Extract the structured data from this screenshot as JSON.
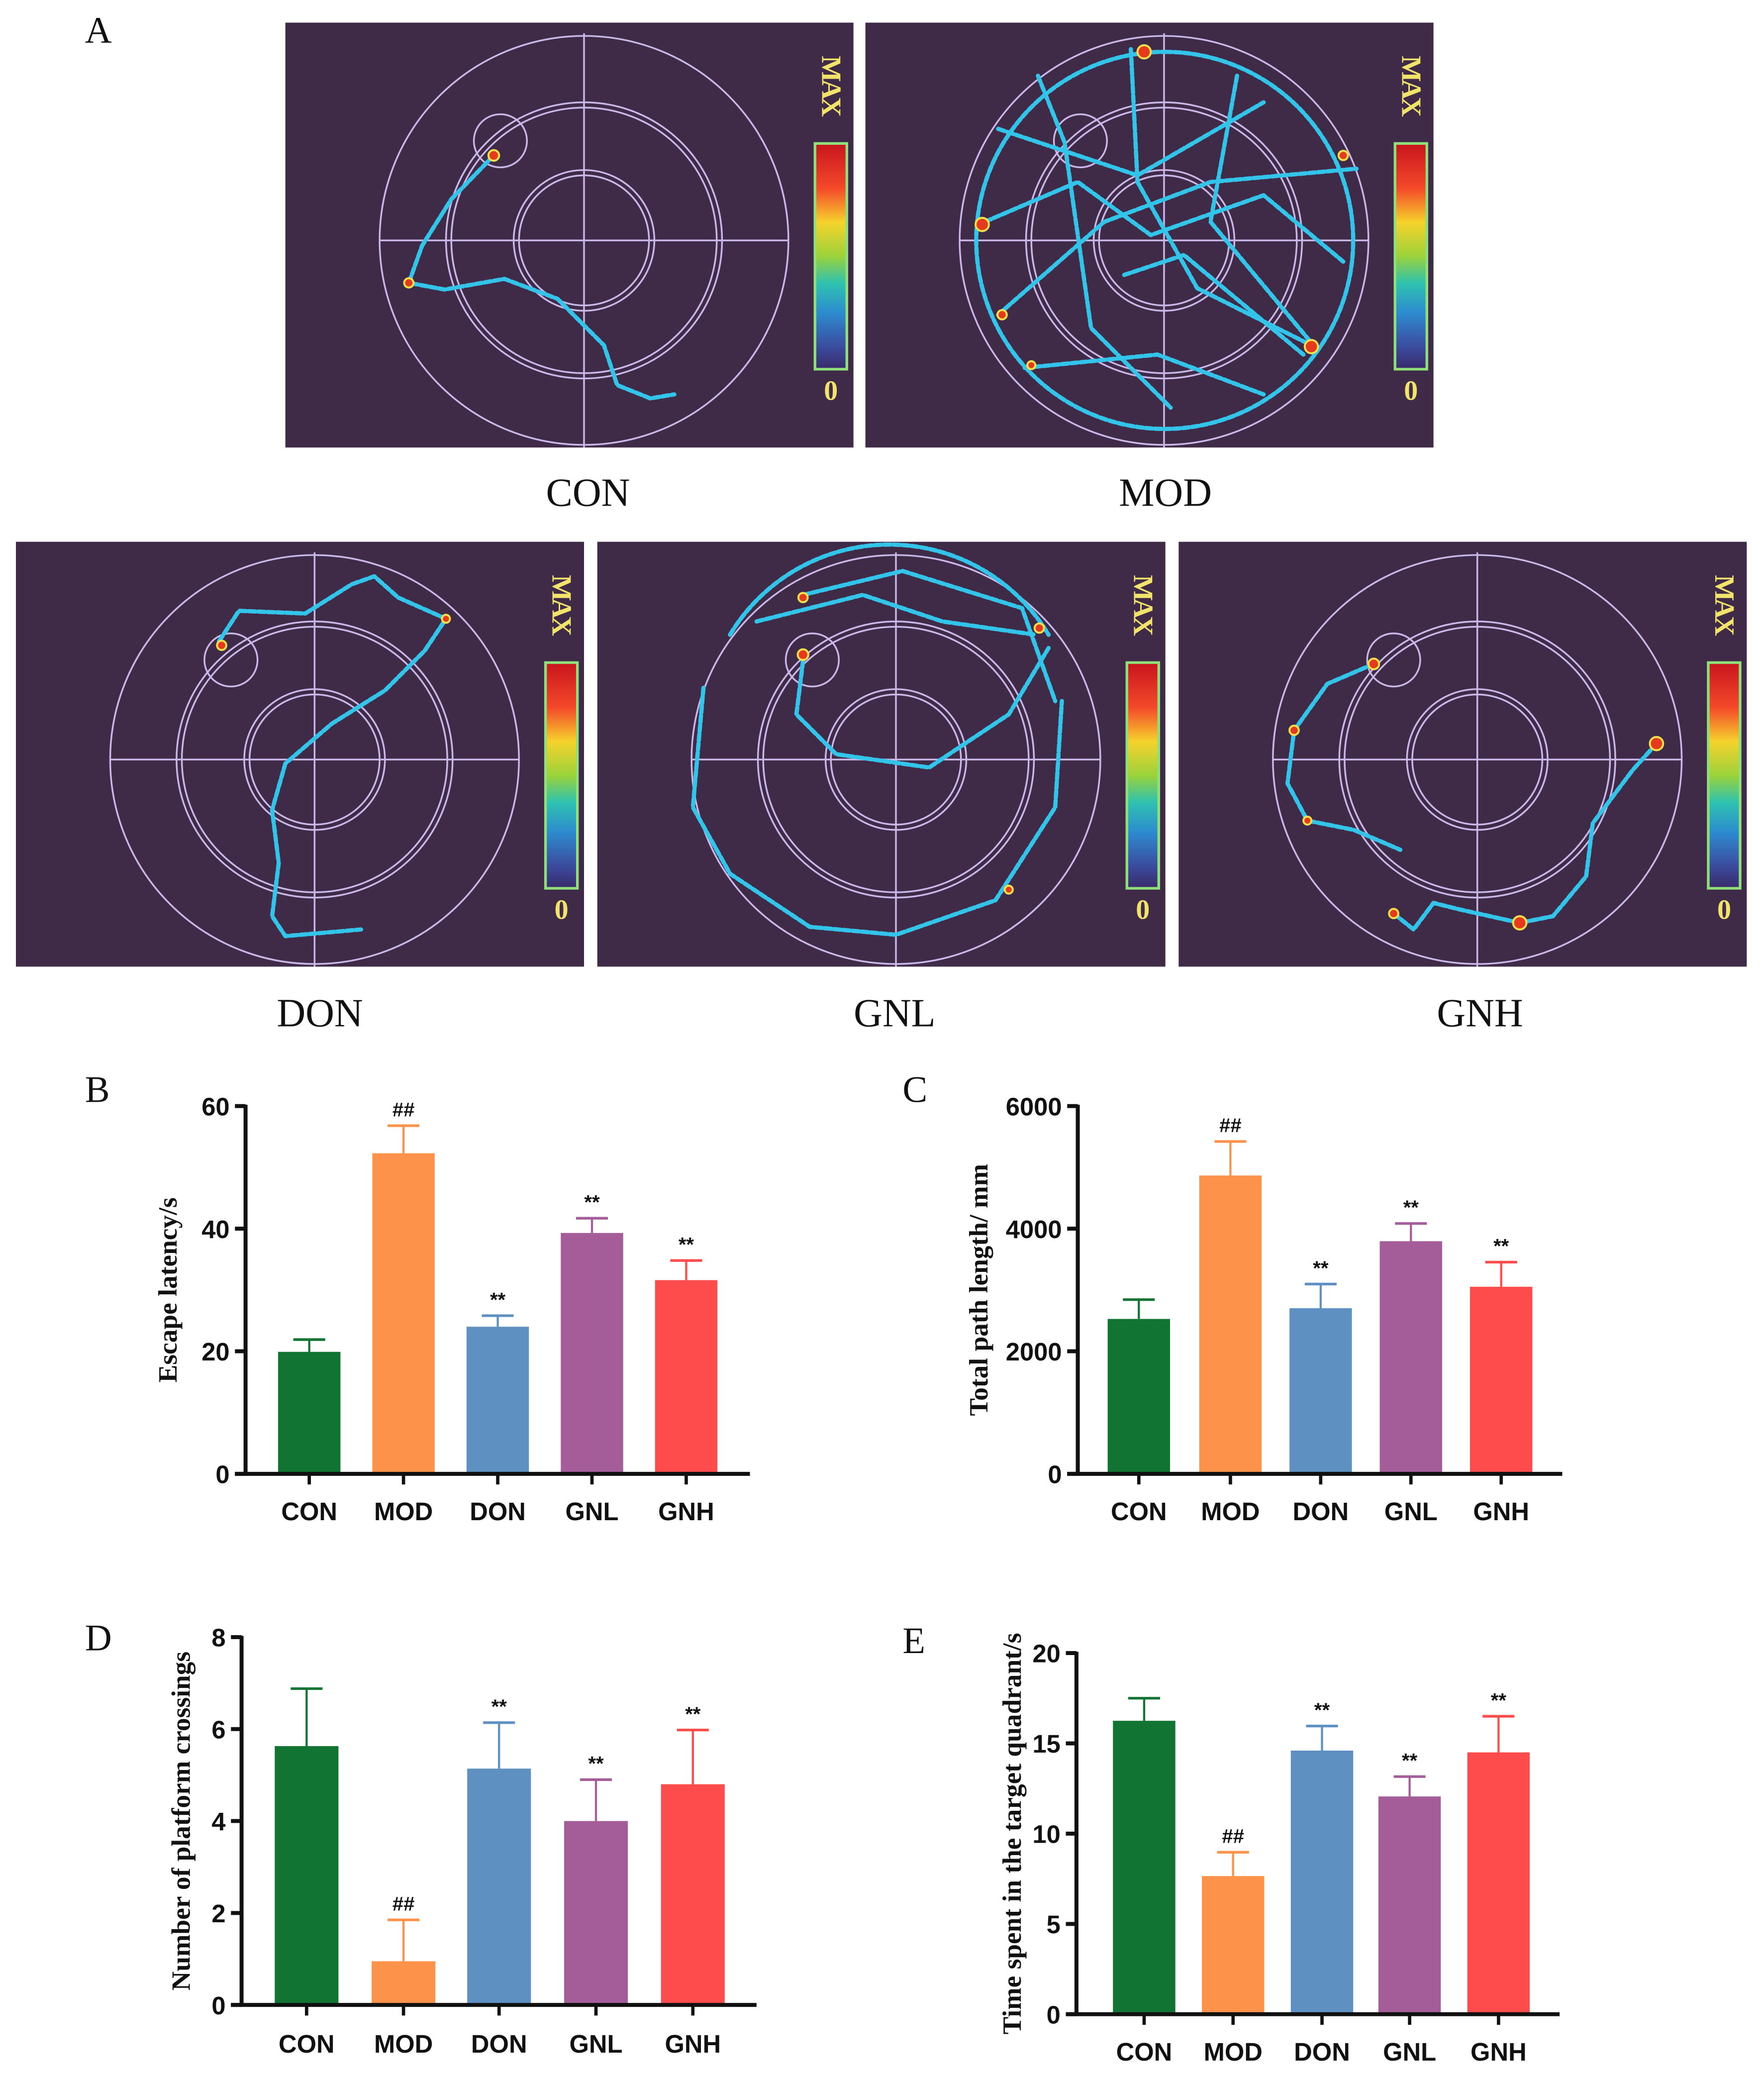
{
  "panel_letters": {
    "A": "A",
    "B": "B",
    "C": "C",
    "D": "D",
    "E": "E"
  },
  "heatmaps": {
    "colorbar_max": "MAX",
    "colorbar_min": "0",
    "background_color": "#3f2a48",
    "groups": [
      "CON",
      "MOD",
      "DON",
      "GNL",
      "GNH"
    ]
  },
  "chart_data": [
    {
      "id": "B",
      "type": "bar",
      "categories": [
        "CON",
        "MOD",
        "DON",
        "GNL",
        "GNH"
      ],
      "values": [
        19.9,
        52.3,
        24.0,
        39.3,
        31.6
      ],
      "errors": [
        2.0,
        4.5,
        1.8,
        2.4,
        3.2
      ],
      "annotations": [
        "",
        "##",
        "**",
        "**",
        "**"
      ],
      "ylabel": "Escape latency/s",
      "xlabel": "",
      "title": "",
      "ylim": [
        0,
        60
      ],
      "yticks": [
        "0",
        "20",
        "40",
        "60"
      ],
      "ytick_values": [
        0,
        20,
        40,
        60
      ]
    },
    {
      "id": "C",
      "type": "bar",
      "categories": [
        "CON",
        "MOD",
        "DON",
        "GNL",
        "GNH"
      ],
      "values": [
        2527,
        4867,
        2702,
        3795,
        3052
      ],
      "errors": [
        315,
        555,
        394,
        289,
        402
      ],
      "annotations": [
        "",
        "##",
        "**",
        "**",
        "**"
      ],
      "ylabel": "Total path length/ mm",
      "xlabel": "",
      "title": "",
      "ylim": [
        0,
        6000
      ],
      "yticks": [
        "0",
        "2000",
        "4000",
        "6000"
      ],
      "ytick_values": [
        0,
        2000,
        4000,
        6000
      ]
    },
    {
      "id": "D",
      "type": "bar",
      "categories": [
        "CON",
        "MOD",
        "DON",
        "GNL",
        "GNH"
      ],
      "values": [
        5.63,
        0.95,
        5.14,
        4.0,
        4.8
      ],
      "errors": [
        1.25,
        0.9,
        1.0,
        0.9,
        1.18
      ],
      "annotations": [
        "",
        "##",
        "**",
        "**",
        "**"
      ],
      "ylabel": "Number of platform crossings",
      "xlabel": "",
      "title": "",
      "ylim": [
        0,
        8
      ],
      "yticks": [
        "0",
        "2",
        "4",
        "6",
        "8"
      ],
      "ytick_values": [
        0,
        2,
        4,
        6,
        8
      ]
    },
    {
      "id": "E",
      "type": "bar",
      "categories": [
        "CON",
        "MOD",
        "DON",
        "GNL",
        "GNH"
      ],
      "values": [
        16.25,
        7.65,
        14.6,
        12.06,
        14.5
      ],
      "errors": [
        1.25,
        1.32,
        1.36,
        1.1,
        2.0
      ],
      "annotations": [
        "",
        "##",
        "**",
        "**",
        "**"
      ],
      "ylabel": "Time spent in the target quadrant/s",
      "xlabel": "",
      "title": "",
      "ylim": [
        0,
        20
      ],
      "yticks": [
        "0",
        "5",
        "10",
        "15",
        "20"
      ],
      "ytick_values": [
        0,
        5,
        10,
        15,
        20
      ]
    }
  ],
  "colors": {
    "CON": "#127432",
    "MOD": "#fd934a",
    "DON": "#5e90c1",
    "GNL": "#a45d99",
    "GNH": "#fe4b4b"
  }
}
